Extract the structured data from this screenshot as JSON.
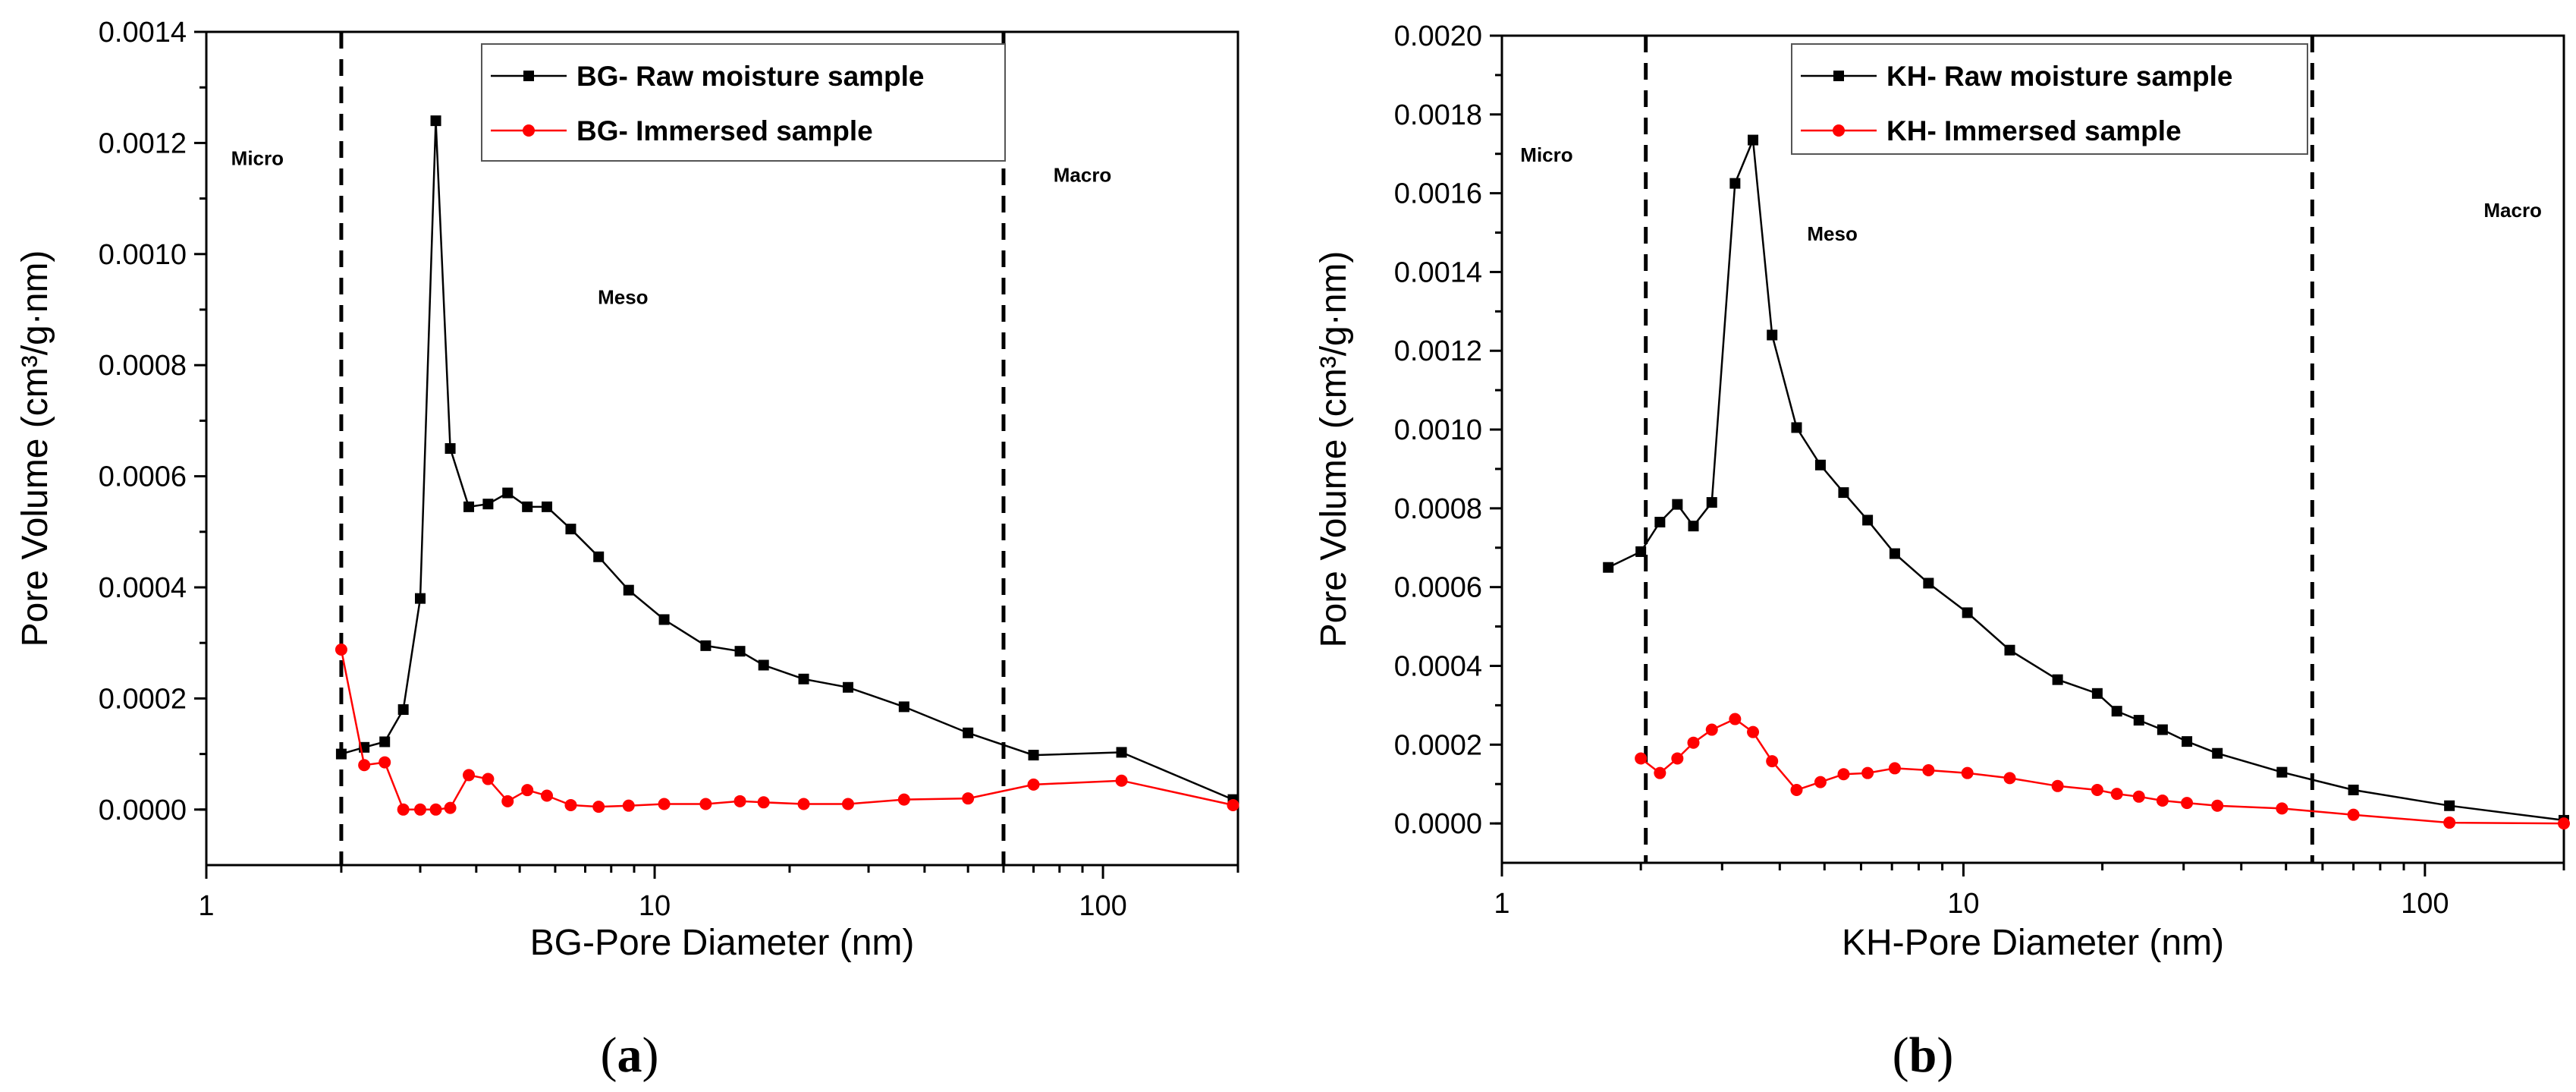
{
  "chart_data": [
    {
      "type": "line",
      "panel_label": "a",
      "xscale": "log",
      "xlim": [
        1,
        200
      ],
      "ylim": [
        -0.0001,
        0.0014
      ],
      "xticks": [
        1,
        10,
        100
      ],
      "xtick_labels": [
        "1",
        "10",
        "100"
      ],
      "yticks": [
        0.0,
        0.0002,
        0.0004,
        0.0006,
        0.0008,
        0.001,
        0.0012,
        0.0014
      ],
      "ytick_labels": [
        "0.0000",
        "0.0002",
        "0.0004",
        "0.0006",
        "0.0008",
        "0.0010",
        "0.0012",
        "0.0014"
      ],
      "xlabel": "BG-Pore Diameter (nm)",
      "ylabel": "Pore Volume (cm³/g·nm)",
      "dividers": [
        2,
        60
      ],
      "regions": [
        {
          "label": "Micro",
          "x": 1.3,
          "y": 0.00116
        },
        {
          "label": "Meso",
          "x": 8.5,
          "y": 0.00091
        },
        {
          "label": "Macro",
          "x": 90,
          "y": 0.00113
        }
      ],
      "series": [
        {
          "name": "BG- Raw moisture sample",
          "color": "#000000",
          "marker": "square",
          "x": [
            2.0,
            2.25,
            2.5,
            2.75,
            3.0,
            3.25,
            3.5,
            3.85,
            4.25,
            4.7,
            5.2,
            5.75,
            6.5,
            7.5,
            8.75,
            10.5,
            13.0,
            15.5,
            17.5,
            21.5,
            27.0,
            36.0,
            50.0,
            70.0,
            110.0,
            195.0
          ],
          "y": [
            0.0001,
            0.000112,
            0.000122,
            0.00018,
            0.00038,
            0.00124,
            0.00065,
            0.000545,
            0.00055,
            0.00057,
            0.000545,
            0.000545,
            0.000505,
            0.000455,
            0.000395,
            0.000342,
            0.000295,
            0.000285,
            0.00026,
            0.000235,
            0.00022,
            0.000185,
            0.000138,
            9.8e-05,
            0.000103,
            1.8e-05
          ]
        },
        {
          "name": "BG- Immersed sample",
          "color": "#ff0000",
          "marker": "circle",
          "x": [
            2.0,
            2.25,
            2.5,
            2.75,
            3.0,
            3.25,
            3.5,
            3.85,
            4.25,
            4.7,
            5.2,
            5.75,
            6.5,
            7.5,
            8.75,
            10.5,
            13.0,
            15.5,
            17.5,
            21.5,
            27.0,
            36.0,
            50.0,
            70.0,
            110.0,
            195.0
          ],
          "y": [
            0.000288,
            8e-05,
            8.5e-05,
            0.0,
            0.0,
            0.0,
            3e-06,
            6.2e-05,
            5.5e-05,
            1.5e-05,
            3.5e-05,
            2.5e-05,
            8e-06,
            5e-06,
            7e-06,
            1e-05,
            1e-05,
            1.5e-05,
            1.3e-05,
            1e-05,
            1e-05,
            1.8e-05,
            2e-05,
            4.5e-05,
            5.2e-05,
            8e-06
          ]
        }
      ]
    },
    {
      "type": "line",
      "panel_label": "b",
      "xscale": "log",
      "xlim": [
        1,
        200
      ],
      "ylim": [
        -0.0001,
        0.002
      ],
      "xticks": [
        1,
        10,
        100
      ],
      "xtick_labels": [
        "1",
        "10",
        "100"
      ],
      "yticks": [
        0.0,
        0.0002,
        0.0004,
        0.0006,
        0.0008,
        0.001,
        0.0012,
        0.0014,
        0.0016,
        0.0018,
        0.002
      ],
      "ytick_labels": [
        "0.0000",
        "0.0002",
        "0.0004",
        "0.0006",
        "0.0008",
        "0.0010",
        "0.0012",
        "0.0014",
        "0.0016",
        "0.0018",
        "0.0020"
      ],
      "xlabel": "KH-Pore Diameter (nm)",
      "ylabel": "Pore Volume (cm³/g·nm)",
      "dividers": [
        2.05,
        57
      ],
      "regions": [
        {
          "label": "Micro",
          "x": 1.25,
          "y": 0.00168
        },
        {
          "label": "Meso",
          "x": 5.2,
          "y": 0.00148
        },
        {
          "label": "Macro",
          "x": 155,
          "y": 0.00154
        }
      ],
      "series": [
        {
          "name": "KH- Raw moisture sample",
          "color": "#000000",
          "marker": "square",
          "x": [
            1.7,
            2.0,
            2.2,
            2.4,
            2.6,
            2.85,
            3.2,
            3.5,
            3.85,
            4.35,
            4.9,
            5.5,
            6.2,
            7.1,
            8.4,
            10.2,
            12.6,
            16.0,
            19.5,
            21.5,
            24.0,
            27.0,
            30.5,
            35.5,
            49.0,
            70.0,
            113.0,
            200.0
          ],
          "y": [
            0.00065,
            0.00069,
            0.000765,
            0.00081,
            0.000755,
            0.000815,
            0.001625,
            0.001735,
            0.00124,
            0.001005,
            0.00091,
            0.00084,
            0.00077,
            0.000685,
            0.00061,
            0.000535,
            0.00044,
            0.000365,
            0.00033,
            0.000285,
            0.000262,
            0.000238,
            0.000208,
            0.000178,
            0.00013,
            8.5e-05,
            4.5e-05,
            8e-06
          ]
        },
        {
          "name": "KH- Immersed sample",
          "color": "#ff0000",
          "marker": "circle",
          "x": [
            2.0,
            2.2,
            2.4,
            2.6,
            2.85,
            3.2,
            3.5,
            3.85,
            4.35,
            4.9,
            5.5,
            6.2,
            7.1,
            8.4,
            10.2,
            12.6,
            16.0,
            19.5,
            21.5,
            24.0,
            27.0,
            30.5,
            35.5,
            49.0,
            70.0,
            113.0,
            200.0
          ],
          "y": [
            0.000165,
            0.000128,
            0.000165,
            0.000205,
            0.000238,
            0.000265,
            0.000232,
            0.000158,
            8.5e-05,
            0.000105,
            0.000125,
            0.000128,
            0.00014,
            0.000135,
            0.000128,
            0.000115,
            9.5e-05,
            8.5e-05,
            7.5e-05,
            6.8e-05,
            5.8e-05,
            5.2e-05,
            4.5e-05,
            3.8e-05,
            2.2e-05,
            2e-06,
            0.0
          ]
        }
      ]
    }
  ]
}
